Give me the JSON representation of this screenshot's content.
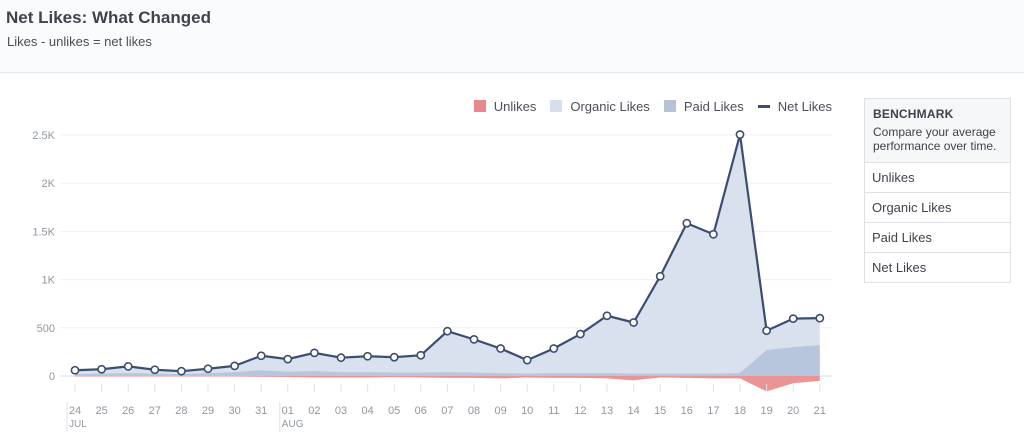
{
  "header": {
    "title": "Net Likes: What Changed",
    "subtitle": "Likes - unlikes = net likes"
  },
  "legend": [
    {
      "label": "Unlikes",
      "color": "#e9888a",
      "kind": "box"
    },
    {
      "label": "Organic Likes",
      "color": "#d6dfec",
      "kind": "box"
    },
    {
      "label": "Paid Likes",
      "color": "#b5c3da",
      "kind": "box"
    },
    {
      "label": "Net Likes",
      "color": "#3c4d72",
      "kind": "line"
    }
  ],
  "benchmark": {
    "title": "BENCHMARK",
    "description": "Compare your average performance over time.",
    "items": [
      "Unlikes",
      "Organic Likes",
      "Paid Likes",
      "Net Likes"
    ]
  },
  "chart_data": {
    "type": "area",
    "x": [
      "24",
      "25",
      "26",
      "27",
      "28",
      "29",
      "30",
      "31",
      "01",
      "02",
      "03",
      "04",
      "05",
      "06",
      "07",
      "08",
      "09",
      "10",
      "11",
      "12",
      "13",
      "14",
      "15",
      "16",
      "17",
      "18",
      "19",
      "20",
      "21"
    ],
    "month_labels": [
      {
        "at": "24",
        "label": "JUL"
      },
      {
        "at": "01",
        "label": "AUG"
      }
    ],
    "y_ticks": [
      {
        "value": 0,
        "label": "0"
      },
      {
        "value": 500,
        "label": "500"
      },
      {
        "value": 1000,
        "label": "1K"
      },
      {
        "value": 1500,
        "label": "1.5K"
      },
      {
        "value": 2000,
        "label": "2K"
      },
      {
        "value": 2500,
        "label": "2.5K"
      }
    ],
    "ylim": [
      -200,
      2600
    ],
    "grid": true,
    "legend_position": "top-right",
    "series": [
      {
        "name": "Unlikes",
        "color": "#e9888a",
        "kind": "area",
        "values": [
          -5,
          -5,
          -5,
          -5,
          -5,
          -5,
          -5,
          -8,
          -10,
          -15,
          -15,
          -15,
          -12,
          -15,
          -20,
          -20,
          -25,
          -15,
          -20,
          -20,
          -25,
          -45,
          -15,
          -20,
          -25,
          -25,
          -160,
          -75,
          -50
        ]
      },
      {
        "name": "Organic Likes",
        "color": "#d6dfec",
        "kind": "area",
        "values": [
          65,
          70,
          100,
          70,
          55,
          80,
          110,
          210,
          180,
          240,
          195,
          210,
          200,
          220,
          470,
          390,
          290,
          170,
          290,
          440,
          630,
          560,
          1040,
          1590,
          1480,
          2510,
          480,
          600,
          610
        ]
      },
      {
        "name": "Paid Likes",
        "color": "#b5c3da",
        "kind": "area",
        "values": [
          20,
          25,
          30,
          25,
          20,
          30,
          40,
          60,
          45,
          50,
          40,
          40,
          35,
          35,
          40,
          35,
          30,
          25,
          30,
          30,
          30,
          25,
          25,
          25,
          25,
          30,
          270,
          300,
          320
        ]
      },
      {
        "name": "Net Likes",
        "color": "#3c4d72",
        "kind": "line",
        "values": [
          60,
          70,
          100,
          65,
          50,
          75,
          105,
          210,
          175,
          240,
          190,
          205,
          195,
          215,
          465,
          380,
          285,
          165,
          285,
          435,
          625,
          555,
          1035,
          1585,
          1470,
          2505,
          470,
          595,
          600
        ]
      }
    ]
  }
}
